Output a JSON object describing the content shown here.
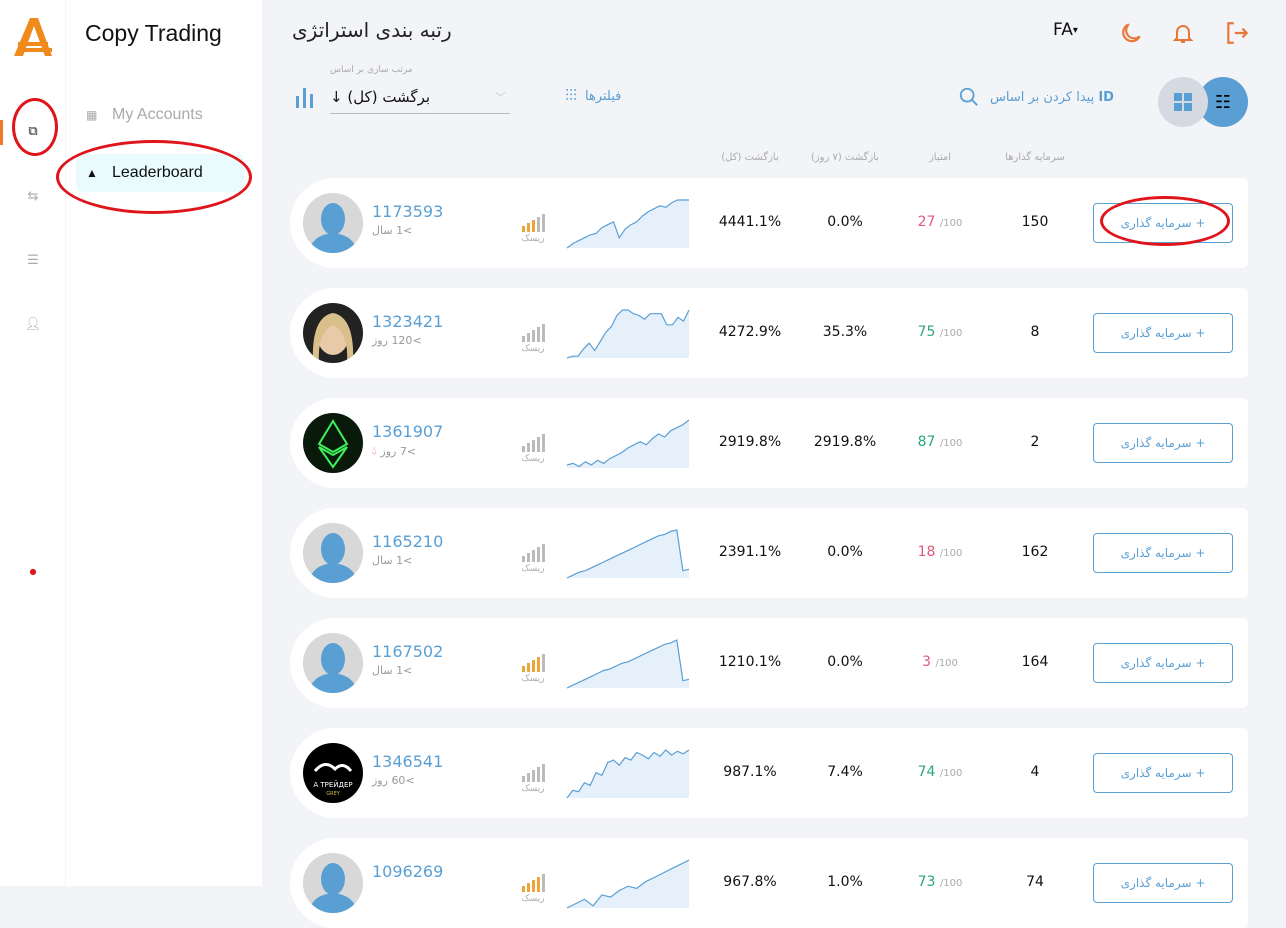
{
  "app": {
    "title": "Copy Trading",
    "logo": "AAFX-logo",
    "accent": "#f07a2c",
    "link_color": "#5a9fd4"
  },
  "rail": {
    "icons": [
      "copy-trading-icon",
      "transfer-icon",
      "list-icon",
      "user-icon",
      "alert-icon"
    ]
  },
  "sidebar": {
    "items": [
      {
        "label": "My Accounts",
        "icon": "grid-icon",
        "active": false
      },
      {
        "label": "Leaderboard",
        "icon": "podium-icon",
        "active": true
      }
    ]
  },
  "header": {
    "title": "رتبه بندی استراتژی",
    "lang": "FA",
    "icons": [
      "moon-icon",
      "bell-icon",
      "logout-icon"
    ]
  },
  "toolbar": {
    "sort_label": "مرتب سازی بر اساس",
    "sort_value": "↓ برگشت (کل)",
    "filters": "فیلترها",
    "search_prefix": "ID",
    "search_text": "پیدا کردن بر اساس"
  },
  "columns": {
    "return_total": "بازگشت (کل)",
    "return_7d": "بازگشت (۷ روز)",
    "score": "امتیاز",
    "investors": "سرمایه گذارها"
  },
  "risk_label": "ریسک",
  "score_suffix": "/100",
  "invest_label": "+ سرمایه گذاری",
  "colors": {
    "score_low": "#e05a7a",
    "score_high": "#2aa77a",
    "risk_active": "#f0a43a",
    "risk_idle": "#bbbbbb"
  },
  "traders": [
    {
      "id": "1173593",
      "age": ">1 سال",
      "avatar": "default",
      "risk": 3,
      "return_total": "4441.1%",
      "return_7d": "0.0%",
      "score": "27",
      "investors": "150",
      "spark": [
        0,
        3,
        5,
        7,
        9,
        10,
        14,
        16,
        18,
        7,
        13,
        16,
        18,
        22,
        25,
        27,
        29,
        28,
        31,
        33,
        33,
        33
      ]
    },
    {
      "id": "1323421",
      "age": ">120 روز",
      "avatar": "photo",
      "risk": 0,
      "return_total": "4272.9%",
      "return_7d": "35.3%",
      "score": "75",
      "investors": "8",
      "spark": [
        0,
        1,
        1,
        5,
        8,
        4,
        9,
        14,
        17,
        23,
        26,
        26,
        24,
        23,
        21,
        24,
        24,
        24,
        18,
        18,
        22,
        20,
        26
      ]
    },
    {
      "id": "1361907",
      "age": ">7 روز",
      "avatar": "ethereum",
      "fire": true,
      "risk": 0,
      "return_total": "2919.8%",
      "return_7d": "2919.8%",
      "score": "87",
      "investors": "2",
      "spark": [
        2,
        3,
        1,
        4,
        2,
        5,
        3,
        6,
        8,
        10,
        13,
        15,
        17,
        15,
        19,
        22,
        20,
        24,
        26,
        28,
        31
      ]
    },
    {
      "id": "1165210",
      "age": ">1 سال",
      "avatar": "default",
      "risk": 0,
      "return_total": "2391.1%",
      "return_7d": "0.0%",
      "score": "18",
      "investors": "162",
      "spark": [
        0,
        2,
        4,
        5,
        7,
        9,
        11,
        13,
        15,
        17,
        19,
        21,
        23,
        25,
        27,
        29,
        30,
        32,
        33,
        5,
        6
      ]
    },
    {
      "id": "1167502",
      "age": ">1 سال",
      "avatar": "default",
      "risk": 4,
      "return_total": "1210.1%",
      "return_7d": "0.0%",
      "score": "3",
      "investors": "164",
      "spark": [
        0,
        2,
        4,
        6,
        8,
        10,
        12,
        13,
        15,
        17,
        18,
        20,
        22,
        24,
        26,
        28,
        30,
        31,
        33,
        5,
        6
      ]
    },
    {
      "id": "1346541",
      "age": ">60 روز",
      "avatar": "trader-grey",
      "risk": 0,
      "return_total": "987.1%",
      "return_7d": "7.4%",
      "score": "74",
      "investors": "4",
      "spark": [
        0,
        6,
        5,
        12,
        10,
        20,
        18,
        28,
        30,
        26,
        32,
        30,
        36,
        34,
        31,
        36,
        33,
        38,
        34,
        37,
        35,
        38
      ]
    },
    {
      "id": "1096269",
      "age": "",
      "avatar": "default",
      "risk": 4,
      "return_total": "967.8%",
      "return_7d": "1.0%",
      "score": "73",
      "investors": "74",
      "spark": [
        0,
        2,
        4,
        1,
        6,
        5,
        8,
        10,
        9,
        12,
        14,
        16,
        18,
        20,
        22
      ]
    }
  ]
}
